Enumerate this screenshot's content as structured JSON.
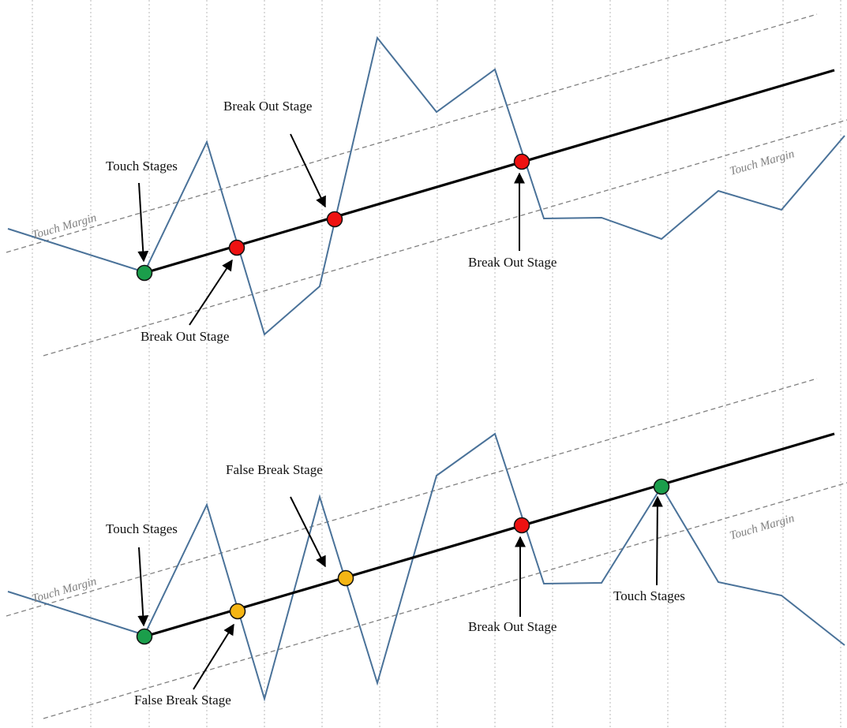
{
  "colors": {
    "price": "#4a7299",
    "trend": "#000000",
    "margin": "#808080",
    "grid": "#b8b8b8",
    "touch": "#1b9e4b",
    "breakout": "#ee1111",
    "false_break": "#f5b514"
  },
  "top": {
    "labels": {
      "touch_stages": "Touch Stages",
      "break_out_upper": "Break Out Stage",
      "break_out_lower": "Break Out Stage",
      "break_out_right": "Break Out Stage",
      "touch_margin_left": "Touch Margin",
      "touch_margin_right": "Touch Margin"
    }
  },
  "bottom": {
    "labels": {
      "touch_stages_left": "Touch Stages",
      "false_break_upper": "False Break Stage",
      "false_break_lower": "False Break Stage",
      "break_out": "Break Out Stage",
      "touch_stages_right": "Touch Stages",
      "touch_margin_left": "Touch Margin",
      "touch_margin_right": "Touch Margin"
    }
  }
}
